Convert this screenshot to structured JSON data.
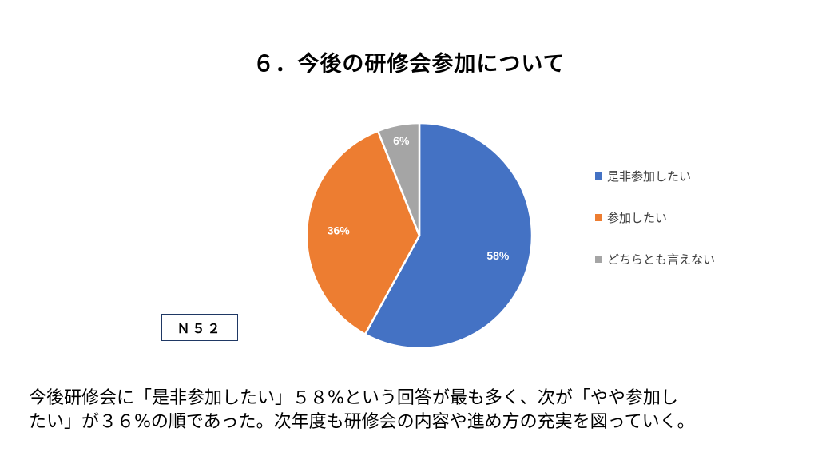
{
  "title": "６．今後の研修会参加について",
  "note": "Ｎ５２",
  "caption": [
    "今後研修会に「是非参加したい」５８%という回答が最も多く、次が「やや参加し",
    "たい」が３６%の順であった。次年度も研修会の内容や進め方の充実を図っていく。"
  ],
  "chart_data": {
    "type": "pie",
    "title": "６．今後の研修会参加について",
    "slices": [
      {
        "name": "是非参加したい",
        "value": 58,
        "label": "58%",
        "color": "#4472c4"
      },
      {
        "name": "参加したい",
        "value": 36,
        "label": "36%",
        "color": "#ed7d31"
      },
      {
        "name": "どちらとも言えない",
        "value": 6,
        "label": "6%",
        "color": "#a5a5a5"
      }
    ],
    "start_angle_deg": 0,
    "direction": "clockwise",
    "legend_position": "right"
  }
}
